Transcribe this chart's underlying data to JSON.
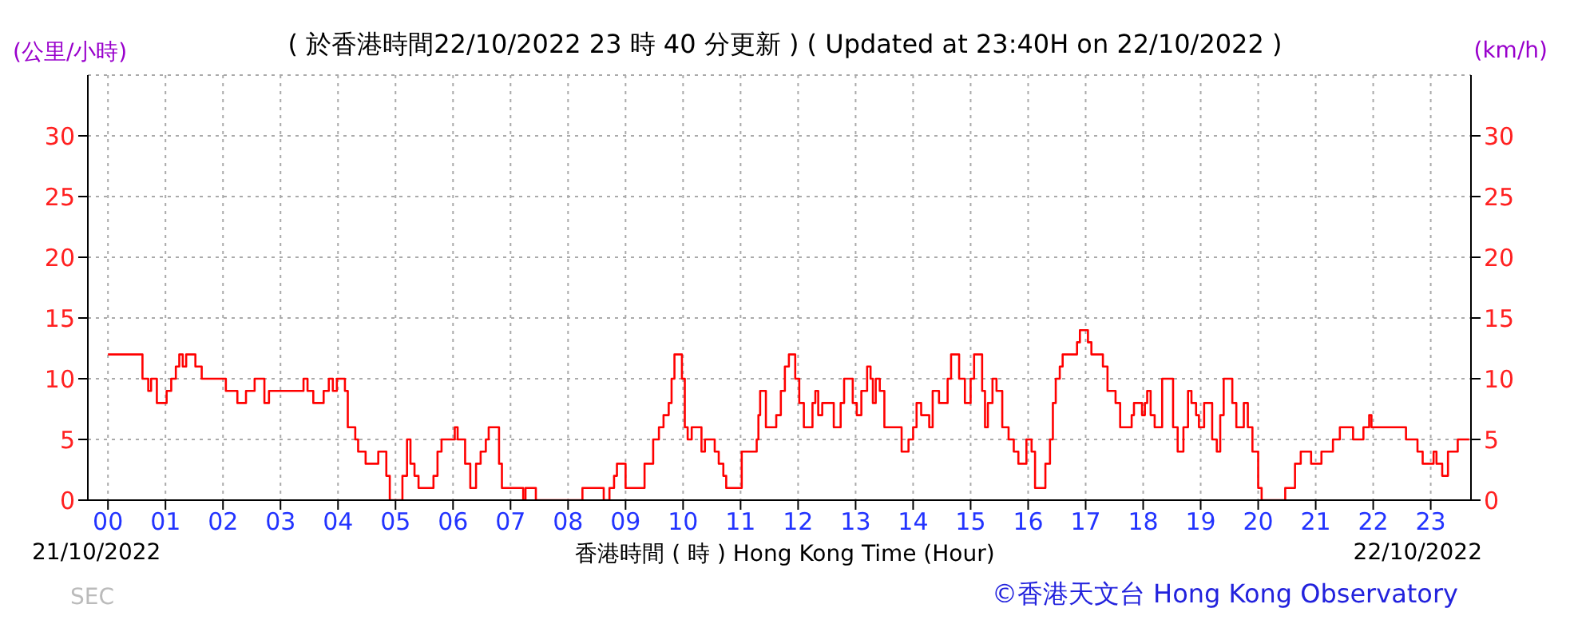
{
  "chart_data": {
    "type": "step",
    "title": "( 於香港時間22/10/2022 23 時 40 分更新 ) ( Updated at 23:40H on 22/10/2022 )",
    "xlabel": "香港時間 ( 時 ) Hong Kong Time (Hour)",
    "ylabel": "(公里/小時)",
    "y2label": "(km/h)",
    "annotations": [
      "21/10/2022",
      "22/10/2022",
      "SEC",
      "©香港天文台 Hong Kong Observatory"
    ],
    "x": [
      0,
      0.6,
      0.7,
      0.75,
      0.85,
      1.02,
      1.1,
      1.18,
      1.24,
      1.3,
      1.36,
      1.52,
      1.63,
      2.05,
      2.25,
      2.4,
      2.55,
      2.72,
      2.8,
      3.4,
      3.47,
      3.57,
      3.75,
      3.84,
      3.91,
      3.98,
      4.12,
      4.17,
      4.3,
      4.35,
      4.48,
      4.7,
      4.84,
      4.9,
      5.12,
      5.2,
      5.26,
      5.33,
      5.4,
      5.66,
      5.73,
      5.8,
      6.03,
      6.08,
      6.21,
      6.3,
      6.4,
      6.48,
      6.57,
      6.62,
      6.8,
      6.85,
      7.22,
      7.26,
      7.44,
      8.25,
      8.62,
      8.72,
      8.8,
      8.85,
      9.0,
      9.33,
      9.48,
      9.58,
      9.66,
      9.75,
      9.8,
      9.85,
      9.98,
      10.03,
      10.08,
      10.15,
      10.32,
      10.38,
      10.55,
      10.62,
      10.7,
      10.75,
      11.02,
      11.28,
      11.31,
      11.34,
      11.44,
      11.62,
      11.7,
      11.77,
      11.84,
      11.95,
      12.02,
      12.1,
      12.25,
      12.3,
      12.35,
      12.42,
      12.62,
      12.74,
      12.8,
      12.95,
      13.02,
      13.1,
      13.2,
      13.26,
      13.3,
      13.35,
      13.42,
      13.5,
      13.8,
      13.92,
      14.0,
      14.06,
      14.14,
      14.28,
      14.34,
      14.45,
      14.6,
      14.66,
      14.8,
      14.9,
      15.0,
      15.06,
      15.2,
      15.25,
      15.3,
      15.38,
      15.45,
      15.55,
      15.66,
      15.75,
      15.83,
      15.97,
      16.06,
      16.12,
      16.3,
      16.38,
      16.43,
      16.48,
      16.55,
      16.6,
      16.85,
      16.9,
      17.04,
      17.1,
      17.3,
      17.38,
      17.52,
      17.6,
      17.8,
      17.84,
      17.98,
      18.03,
      18.07,
      18.13,
      18.2,
      18.33,
      18.52,
      18.6,
      18.7,
      18.78,
      18.84,
      18.92,
      18.97,
      19.06,
      19.2,
      19.28,
      19.34,
      19.4,
      19.55,
      19.62,
      19.75,
      19.82,
      19.9,
      20.0,
      20.06,
      20.47,
      20.64,
      20.74,
      20.92,
      21.1,
      21.3,
      21.42,
      21.65,
      21.83,
      21.93,
      21.97,
      22.57,
      22.77,
      22.86,
      23.05,
      23.1,
      23.2,
      23.3,
      23.47,
      23.67
    ],
    "series": [
      {
        "color": "#ff0000",
        "values": [
          12,
          10,
          9,
          10,
          8,
          9,
          10,
          11,
          12,
          11,
          12,
          11,
          10,
          9,
          8,
          9,
          10,
          8,
          9,
          10,
          9,
          8,
          9,
          10,
          9,
          10,
          9,
          6,
          5,
          4,
          3,
          4,
          2,
          0,
          2,
          5,
          3,
          2,
          1,
          2,
          4,
          5,
          6,
          5,
          3,
          1,
          3,
          4,
          5,
          6,
          3,
          1,
          0,
          1,
          0,
          1,
          0,
          1,
          2,
          3,
          1,
          3,
          5,
          6,
          7,
          8,
          10,
          12,
          10,
          6,
          5,
          6,
          4,
          5,
          4,
          3,
          2,
          1,
          4,
          5,
          7,
          9,
          6,
          7,
          9,
          11,
          12,
          10,
          8,
          6,
          8,
          9,
          7,
          8,
          6,
          8,
          10,
          8,
          7,
          9,
          11,
          10,
          8,
          10,
          9,
          6,
          4,
          5,
          6,
          8,
          7,
          6,
          9,
          8,
          10,
          12,
          10,
          8,
          10,
          12,
          9,
          6,
          8,
          10,
          9,
          6,
          5,
          4,
          3,
          5,
          4,
          1,
          3,
          5,
          8,
          10,
          11,
          12,
          13,
          14,
          13,
          12,
          11,
          9,
          8,
          6,
          7,
          8,
          7,
          8,
          9,
          7,
          6,
          10,
          6,
          4,
          6,
          9,
          8,
          7,
          6,
          8,
          5,
          4,
          7,
          10,
          8,
          6,
          8,
          6,
          4,
          1,
          0,
          1,
          3,
          4,
          3,
          4,
          5,
          6,
          5,
          6,
          7,
          6,
          5,
          4,
          3,
          4,
          3,
          2,
          4,
          5,
          5
        ]
      }
    ],
    "xlim": [
      -0.35,
      23.7
    ],
    "xticks": [
      {
        "value": 0,
        "label": "00"
      },
      {
        "value": 1,
        "label": "01"
      },
      {
        "value": 2,
        "label": "02"
      },
      {
        "value": 3,
        "label": "03"
      },
      {
        "value": 4,
        "label": "04"
      },
      {
        "value": 5,
        "label": "05"
      },
      {
        "value": 6,
        "label": "06"
      },
      {
        "value": 7,
        "label": "07"
      },
      {
        "value": 8,
        "label": "08"
      },
      {
        "value": 9,
        "label": "09"
      },
      10,
      11,
      12,
      13,
      14,
      15,
      16,
      17,
      18,
      19,
      20,
      21,
      22,
      23
    ],
    "ylim": [
      0,
      35
    ],
    "yticks": [
      0,
      5,
      10,
      15,
      20,
      25,
      30
    ],
    "y2lim": [
      0,
      35
    ],
    "y2ticks": [
      0,
      5,
      10,
      15,
      20,
      25,
      30
    ],
    "grid": true
  }
}
